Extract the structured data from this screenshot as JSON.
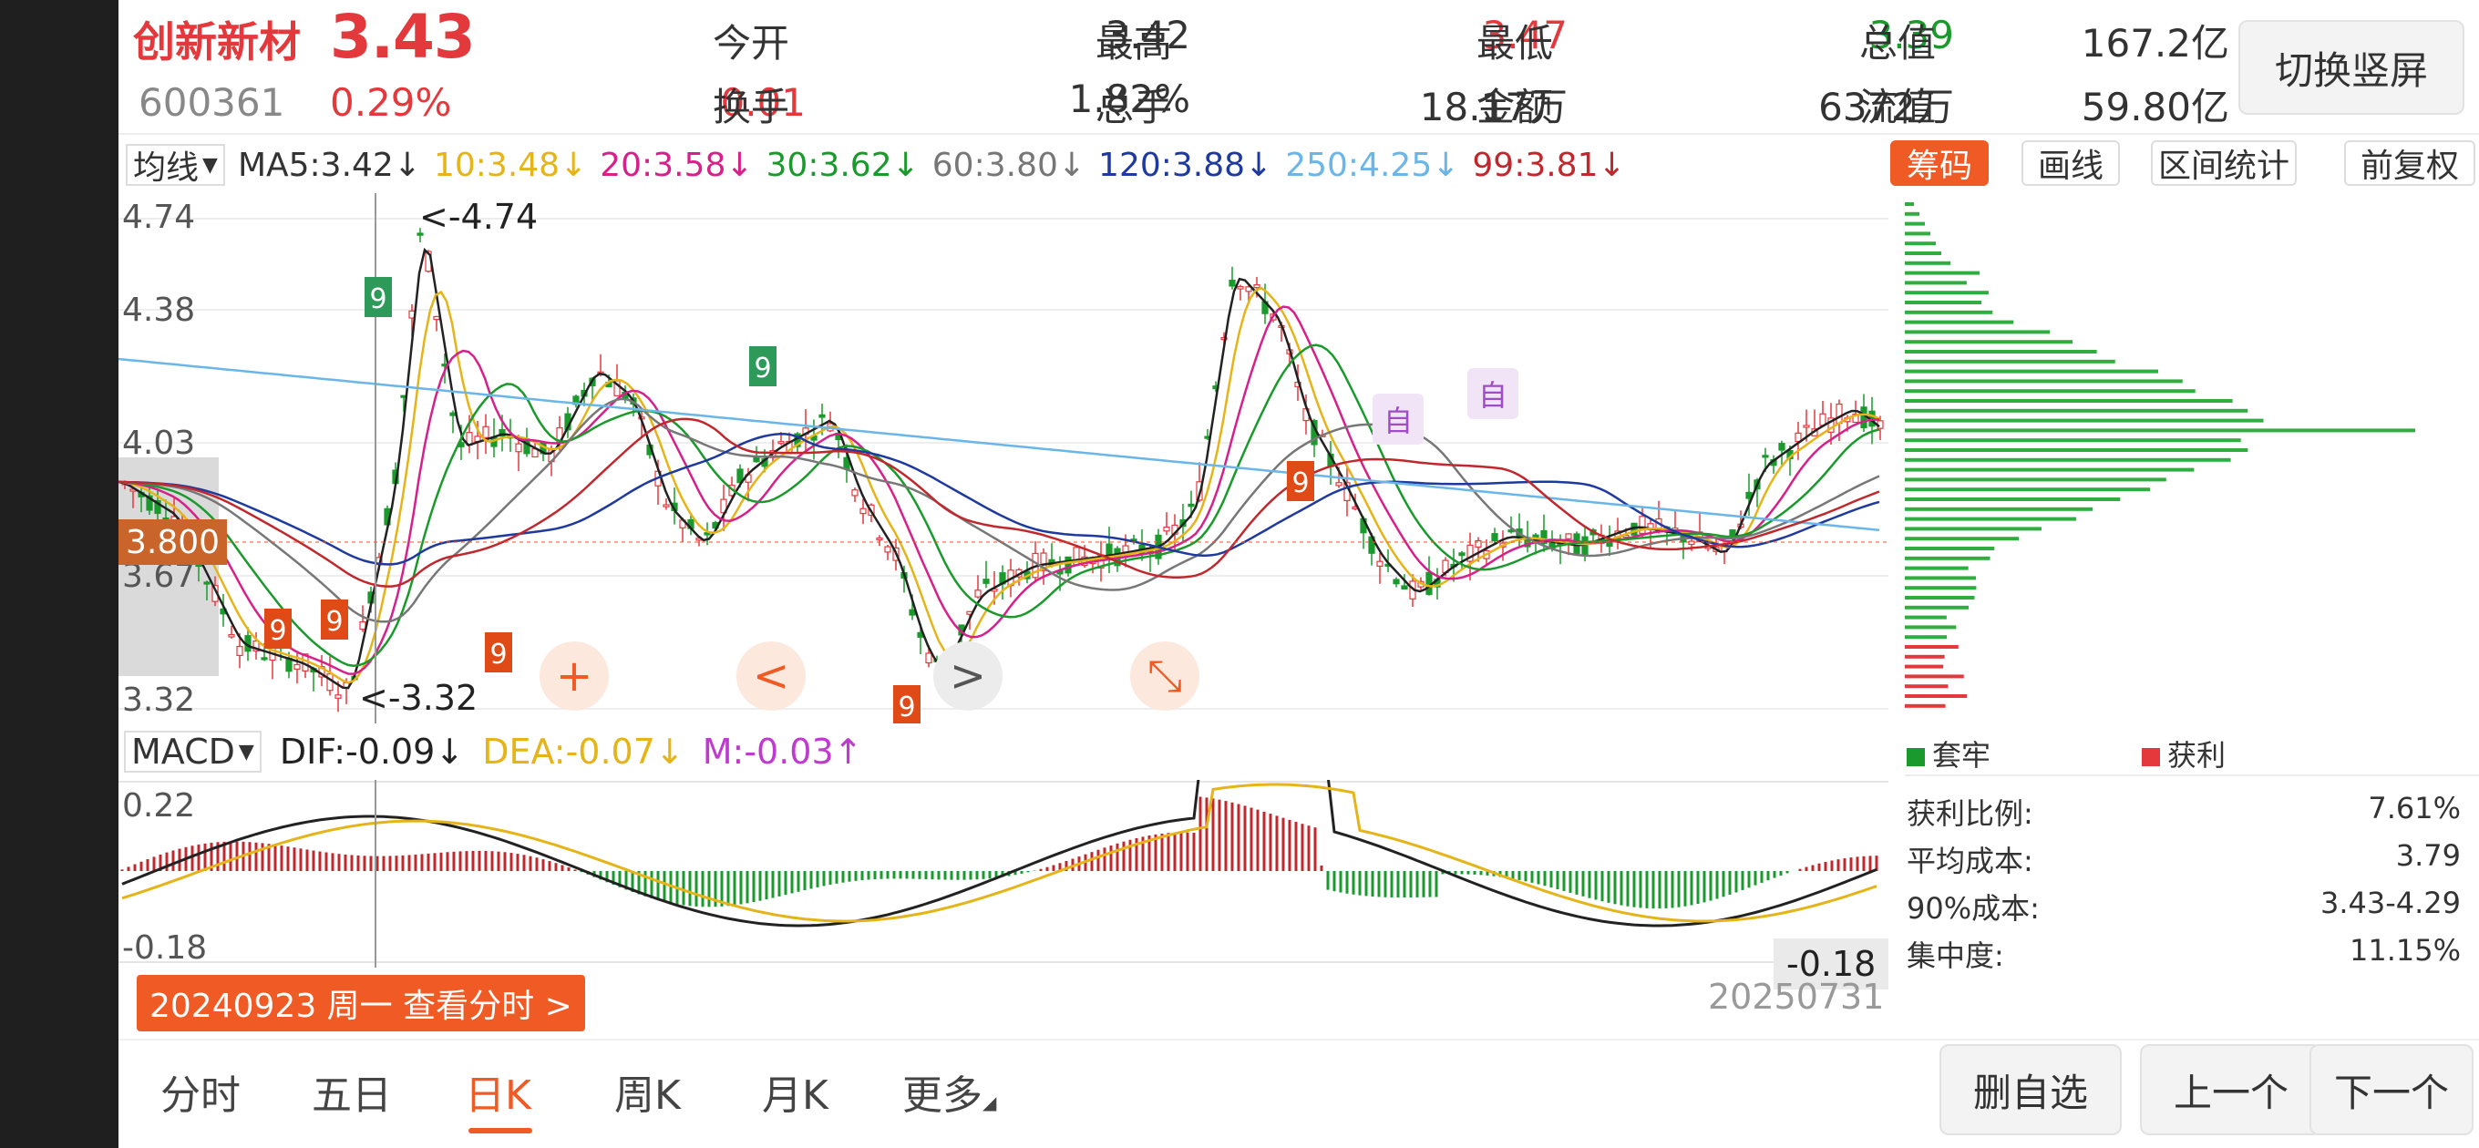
{
  "stock": {
    "name": "创新新材",
    "price": "3.43",
    "code": "600361",
    "change_pct": "0.29%",
    "change": "0.01"
  },
  "quotes": [
    {
      "label": "今开",
      "value": "3.42",
      "color": "#333333"
    },
    {
      "label": "最高",
      "value": "3.47",
      "color": "#e4393c"
    },
    {
      "label": "最低",
      "value": "3.39",
      "color": "#1a9a2c"
    },
    {
      "label": "总值",
      "value": "167.2亿",
      "color": "#333333"
    },
    {
      "label": "换手",
      "value": "1.82%",
      "color": "#333333"
    },
    {
      "label": "总手",
      "value": "18.17万",
      "color": "#333333"
    },
    {
      "label": "金额",
      "value": "6372万",
      "color": "#333333"
    },
    {
      "label": "流值",
      "value": "59.80亿",
      "color": "#333333"
    }
  ],
  "switch_button": "切换竖屏",
  "ma_selector": "均线",
  "ma_items": [
    {
      "text": "MA5:3.42↓",
      "color": "#333333"
    },
    {
      "text": "10:3.48↓",
      "color": "#e5b419"
    },
    {
      "text": "20:3.58↓",
      "color": "#d6208a"
    },
    {
      "text": "30:3.62↓",
      "color": "#1a9a2c"
    },
    {
      "text": "60:3.80↓",
      "color": "#777777"
    },
    {
      "text": "120:3.88↓",
      "color": "#1f3a9e"
    },
    {
      "text": "250:4.25↓",
      "color": "#6ab6e8"
    },
    {
      "text": "99:3.81↓",
      "color": "#c0282e"
    }
  ],
  "tools": [
    "筹码",
    "画线",
    "区间统计",
    "前复权"
  ],
  "price_axis": {
    "top": "4.74",
    "t2": "4.38",
    "t3": "4.03",
    "t4": "3.67",
    "bottom": "3.32"
  },
  "current_price_tag": "3.800",
  "annotations": {
    "high": "<-4.74",
    "low": "<-3.32",
    "self_mark": "自",
    "seq_9": "9"
  },
  "controls": {
    "plus": "+",
    "prev": "<",
    "next": ">",
    "shrink": "⤡"
  },
  "macd": {
    "selector": "MACD",
    "dif": "DIF:-0.09↓",
    "dea": "DEA:-0.07↓",
    "m": "M:-0.03↑",
    "axis_top": "0.22",
    "axis_bottom": "-0.18",
    "current_value": "-0.18"
  },
  "chips": {
    "legend_trapped": "套牢",
    "legend_profit": "获利"
  },
  "stats": [
    {
      "label": "获利比例:",
      "value": "7.61%"
    },
    {
      "label": "平均成本:",
      "value": "3.79"
    },
    {
      "label": "90%成本:",
      "value": "3.43-4.29"
    },
    {
      "label": "集中度:",
      "value": "11.15%"
    }
  ],
  "date_badge": "20240923 周一 查看分时 >",
  "date_right": "20250731",
  "tabs": [
    "分时",
    "五日",
    "日K",
    "周K",
    "月K",
    "更多"
  ],
  "active_tab": "日K",
  "bottom_buttons": [
    "删自选",
    "上一个",
    "下一个"
  ],
  "colors": {
    "up": "#e4393c",
    "down": "#1a9a2c",
    "accent": "#f05a24"
  }
}
